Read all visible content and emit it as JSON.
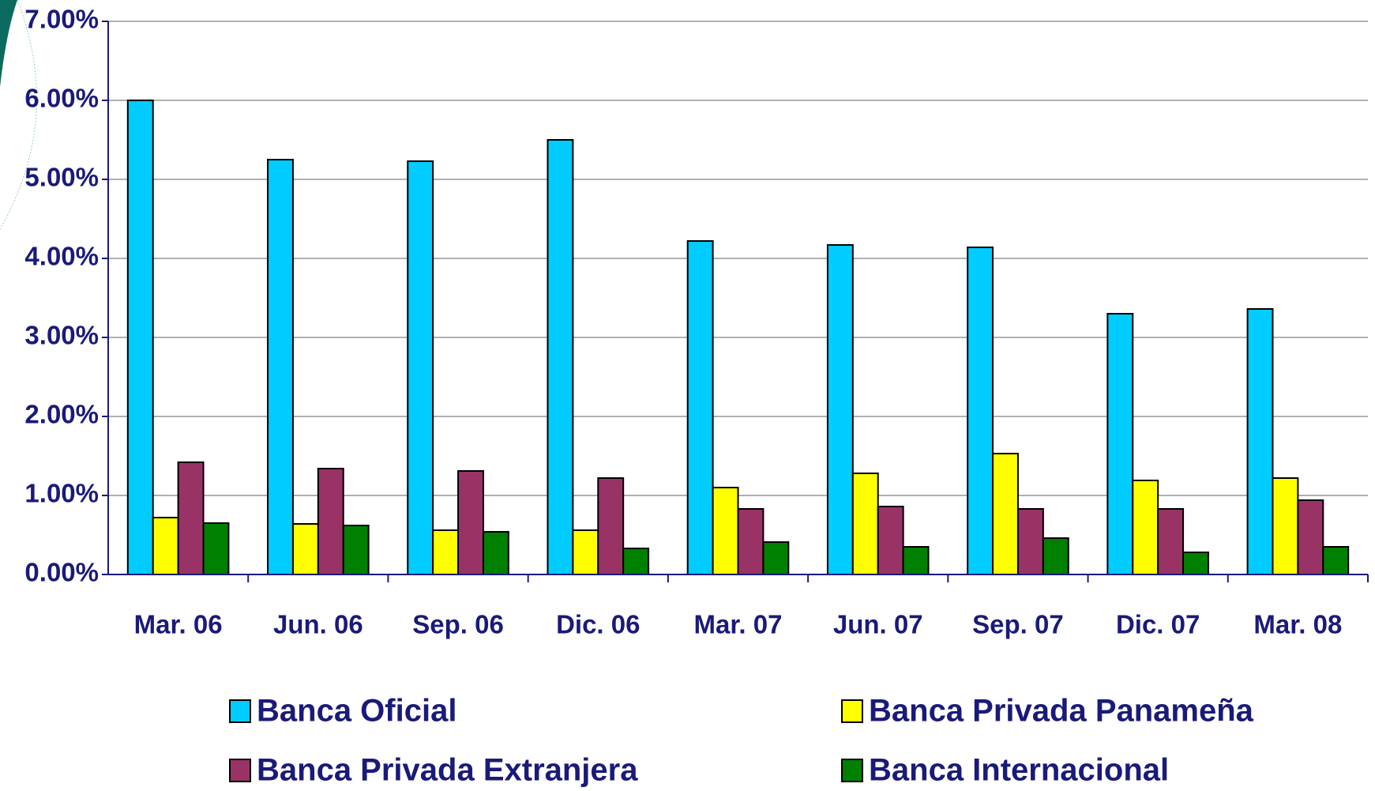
{
  "chart_data": {
    "type": "bar",
    "categories": [
      "Mar. 06",
      "Jun. 06",
      "Sep. 06",
      "Dic. 06",
      "Mar. 07",
      "Jun. 07",
      "Sep. 07",
      "Dic. 07",
      "Mar. 08"
    ],
    "series": [
      {
        "name": "Banca Oficial",
        "color": "#00ccff",
        "values": [
          6.0,
          5.25,
          5.23,
          5.5,
          4.22,
          4.17,
          4.14,
          3.3,
          3.36
        ]
      },
      {
        "name": "Banca Privada Panameña",
        "color": "#ffff00",
        "values": [
          0.72,
          0.64,
          0.56,
          0.56,
          1.1,
          1.28,
          1.53,
          1.19,
          1.22
        ]
      },
      {
        "name": "Banca Privada Extranjera",
        "color": "#993366",
        "values": [
          1.42,
          1.34,
          1.31,
          1.22,
          0.83,
          0.86,
          0.83,
          0.83,
          0.94
        ]
      },
      {
        "name": "Banca Internacional",
        "color": "#008000",
        "values": [
          0.65,
          0.62,
          0.54,
          0.33,
          0.41,
          0.35,
          0.46,
          0.28,
          0.35
        ]
      }
    ],
    "ylim": [
      0,
      7
    ],
    "yticks": [
      {
        "value": 0,
        "label": "0.00%"
      },
      {
        "value": 1,
        "label": "1.00%"
      },
      {
        "value": 2,
        "label": "2.00%"
      },
      {
        "value": 3,
        "label": "3.00%"
      },
      {
        "value": 4,
        "label": "4.00%"
      },
      {
        "value": 5,
        "label": "5.00%"
      },
      {
        "value": 6,
        "label": "6.00%"
      },
      {
        "value": 7,
        "label": "7.00%"
      }
    ],
    "grid": true
  }
}
